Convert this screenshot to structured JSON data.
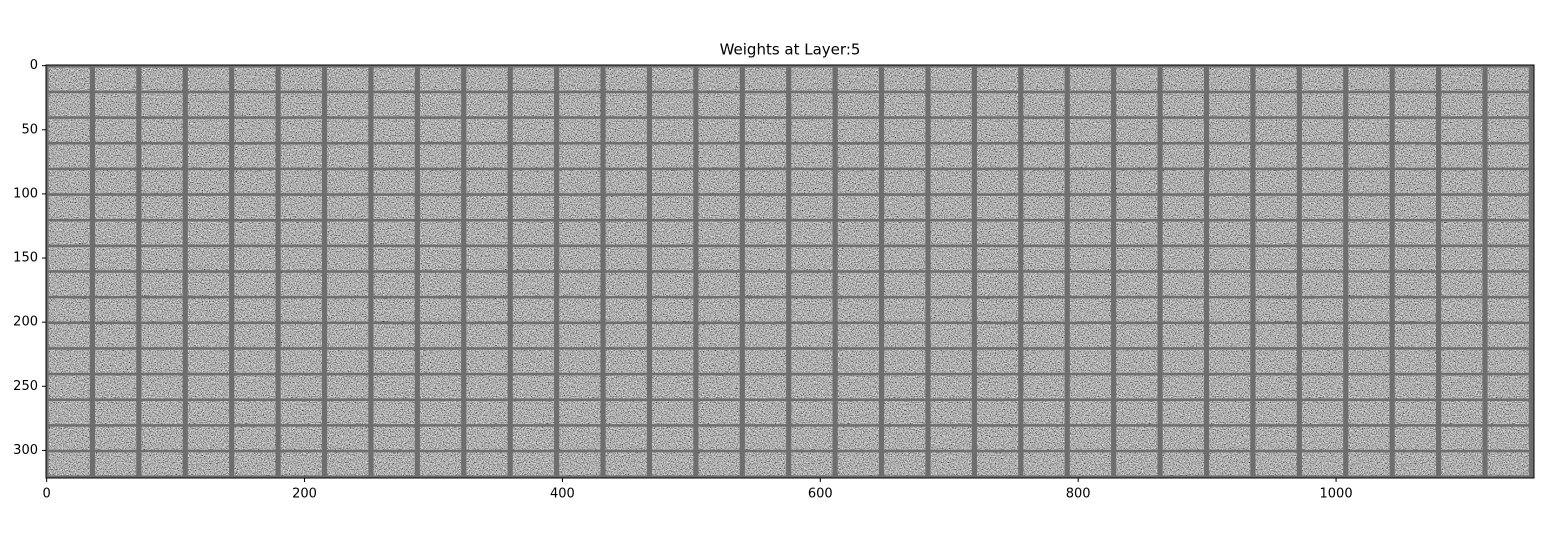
{
  "chart_data": {
    "type": "image",
    "title": "Weights at Layer:5",
    "xlim": [
      -0.5,
      1153.5
    ],
    "ylim": [
      321.5,
      -0.5
    ],
    "xticks": [
      0,
      200,
      400,
      600,
      800,
      1000
    ],
    "yticks": [
      0,
      50,
      100,
      150,
      200,
      250,
      300
    ]
  }
}
